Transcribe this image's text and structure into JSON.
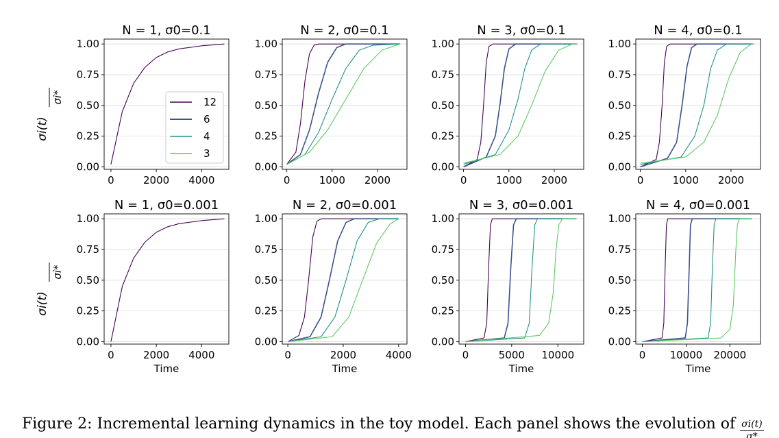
{
  "figure": {
    "caption_text": "Figure 2: Incremental learning dynamics in the toy model. Each panel shows the evolution of",
    "caption_frac_num": "σi(t)",
    "caption_frac_den": "σ*",
    "colors": {
      "12": "#440154",
      "6": "#3b528b",
      "4": "#21918c",
      "3": "#5ec962"
    }
  },
  "chart_data": [
    {
      "type": "line",
      "title": "N = 1, σ0=0.1",
      "ylabel": "σi(t) / σi*",
      "xlabel": "",
      "xlim": [
        -300,
        5200
      ],
      "ylim": [
        -0.02,
        1.04
      ],
      "xticks": [
        0,
        2000,
        4000
      ],
      "yticks": [
        0.0,
        0.25,
        0.5,
        0.75,
        1.0
      ],
      "legend": {
        "position": "lower-right",
        "entries": [
          "12",
          "6",
          "4",
          "3"
        ]
      },
      "series": [
        {
          "name": "12",
          "x": [
            0,
            500,
            1000,
            1500,
            2000,
            2500,
            3000,
            4000,
            5000
          ],
          "y": [
            0.02,
            0.45,
            0.68,
            0.81,
            0.89,
            0.935,
            0.96,
            0.985,
            1.0
          ]
        }
      ]
    },
    {
      "type": "line",
      "title": "N = 2, σ0=0.1",
      "xlabel": "",
      "xlim": [
        -100,
        2650
      ],
      "ylim": [
        -0.02,
        1.04
      ],
      "xticks": [
        0,
        1000,
        2000
      ],
      "yticks": [
        0.0,
        0.25,
        0.5,
        0.75,
        1.0
      ],
      "series": [
        {
          "name": "12",
          "x": [
            0,
            200,
            300,
            400,
            500,
            600,
            700,
            2500
          ],
          "y": [
            0.02,
            0.12,
            0.35,
            0.7,
            0.92,
            0.99,
            1.0,
            1.0
          ]
        },
        {
          "name": "6",
          "x": [
            0,
            300,
            500,
            700,
            900,
            1100,
            1300,
            2500
          ],
          "y": [
            0.02,
            0.1,
            0.3,
            0.6,
            0.85,
            0.97,
            1.0,
            1.0
          ]
        },
        {
          "name": "4",
          "x": [
            0,
            400,
            700,
            1000,
            1300,
            1600,
            1900,
            2500
          ],
          "y": [
            0.02,
            0.1,
            0.28,
            0.55,
            0.8,
            0.95,
            0.99,
            1.0
          ]
        },
        {
          "name": "3",
          "x": [
            0,
            500,
            900,
            1300,
            1700,
            2100,
            2500
          ],
          "y": [
            0.02,
            0.12,
            0.3,
            0.55,
            0.8,
            0.95,
            1.0
          ]
        }
      ]
    },
    {
      "type": "line",
      "title": "N = 3, σ0=0.1",
      "xlabel": "",
      "xlim": [
        -100,
        2650
      ],
      "ylim": [
        -0.02,
        1.04
      ],
      "xticks": [
        0,
        1000,
        2000
      ],
      "yticks": [
        0.0,
        0.25,
        0.5,
        0.75,
        1.0
      ],
      "series": [
        {
          "name": "12",
          "x": [
            0,
            300,
            380,
            440,
            500,
            560,
            650,
            2500
          ],
          "y": [
            0.0,
            0.06,
            0.2,
            0.5,
            0.85,
            0.98,
            1.0,
            1.0
          ]
        },
        {
          "name": "6",
          "x": [
            0,
            500,
            700,
            800,
            900,
            1000,
            1150,
            2500
          ],
          "y": [
            0.0,
            0.08,
            0.25,
            0.5,
            0.8,
            0.96,
            1.0,
            1.0
          ]
        },
        {
          "name": "4",
          "x": [
            0,
            700,
            1000,
            1200,
            1350,
            1500,
            1700,
            2500
          ],
          "y": [
            0.02,
            0.1,
            0.3,
            0.55,
            0.8,
            0.95,
            1.0,
            1.0
          ]
        },
        {
          "name": "3",
          "x": [
            0,
            800,
            1200,
            1500,
            1800,
            2100,
            2400,
            2500
          ],
          "y": [
            0.03,
            0.1,
            0.25,
            0.5,
            0.78,
            0.95,
            1.0,
            1.0
          ]
        }
      ]
    },
    {
      "type": "line",
      "title": "N = 4, σ0=0.1",
      "xlabel": "",
      "xlim": [
        -100,
        2650
      ],
      "ylim": [
        -0.02,
        1.04
      ],
      "xticks": [
        0,
        1000,
        2000
      ],
      "yticks": [
        0.0,
        0.25,
        0.5,
        0.75,
        1.0
      ],
      "series": [
        {
          "name": "12",
          "x": [
            0,
            350,
            420,
            480,
            530,
            580,
            650,
            2500
          ],
          "y": [
            0.0,
            0.06,
            0.2,
            0.5,
            0.85,
            0.98,
            1.0,
            1.0
          ]
        },
        {
          "name": "6",
          "x": [
            0,
            600,
            800,
            920,
            1030,
            1130,
            1250,
            2500
          ],
          "y": [
            0.0,
            0.07,
            0.2,
            0.5,
            0.82,
            0.97,
            1.0,
            1.0
          ]
        },
        {
          "name": "4",
          "x": [
            0,
            900,
            1200,
            1400,
            1550,
            1700,
            1900,
            2500
          ],
          "y": [
            0.02,
            0.08,
            0.25,
            0.5,
            0.8,
            0.95,
            1.0,
            1.0
          ]
        },
        {
          "name": "3",
          "x": [
            0,
            1000,
            1400,
            1700,
            1950,
            2200,
            2450,
            2500
          ],
          "y": [
            0.03,
            0.08,
            0.2,
            0.42,
            0.72,
            0.93,
            1.0,
            1.0
          ]
        }
      ]
    },
    {
      "type": "line",
      "title": "N = 1, σ0=0.001",
      "ylabel": "σi(t) / σi*",
      "xlabel": "Time",
      "xlim": [
        -300,
        5200
      ],
      "ylim": [
        -0.02,
        1.04
      ],
      "xticks": [
        0,
        2000,
        4000
      ],
      "yticks": [
        0.0,
        0.25,
        0.5,
        0.75,
        1.0
      ],
      "series": [
        {
          "name": "12",
          "x": [
            0,
            500,
            1000,
            1500,
            2000,
            2500,
            3000,
            4000,
            5000
          ],
          "y": [
            0.0,
            0.45,
            0.68,
            0.81,
            0.89,
            0.935,
            0.96,
            0.985,
            1.0
          ]
        }
      ]
    },
    {
      "type": "line",
      "title": "N = 2, σ0=0.001",
      "xlabel": "Time",
      "xlim": [
        -200,
        4300
      ],
      "ylim": [
        -0.02,
        1.04
      ],
      "xticks": [
        0,
        2000,
        4000
      ],
      "yticks": [
        0.0,
        0.25,
        0.5,
        0.75,
        1.0
      ],
      "series": [
        {
          "name": "12",
          "x": [
            0,
            400,
            600,
            750,
            900,
            1050,
            1200,
            4000
          ],
          "y": [
            0.0,
            0.05,
            0.2,
            0.5,
            0.85,
            0.98,
            1.0,
            1.0
          ]
        },
        {
          "name": "6",
          "x": [
            0,
            800,
            1200,
            1500,
            1800,
            2100,
            2400,
            4000
          ],
          "y": [
            0.0,
            0.04,
            0.2,
            0.5,
            0.82,
            0.97,
            1.0,
            1.0
          ]
        },
        {
          "name": "4",
          "x": [
            0,
            1200,
            1700,
            2100,
            2500,
            2900,
            3300,
            4000
          ],
          "y": [
            0.0,
            0.04,
            0.2,
            0.5,
            0.82,
            0.97,
            1.0,
            1.0
          ]
        },
        {
          "name": "3",
          "x": [
            0,
            1600,
            2200,
            2700,
            3200,
            3700,
            4000
          ],
          "y": [
            0.0,
            0.04,
            0.2,
            0.5,
            0.8,
            0.96,
            1.0
          ]
        }
      ]
    },
    {
      "type": "line",
      "title": "N = 3, σ0=0.001",
      "xlabel": "Time",
      "xlim": [
        -700,
        12800
      ],
      "ylim": [
        -0.02,
        1.04
      ],
      "xticks": [
        0,
        5000,
        10000
      ],
      "yticks": [
        0.0,
        0.25,
        0.5,
        0.75,
        1.0
      ],
      "series": [
        {
          "name": "12",
          "x": [
            0,
            2000,
            2300,
            2500,
            2700,
            2900,
            12000
          ],
          "y": [
            0.0,
            0.03,
            0.15,
            0.6,
            0.95,
            1.0,
            1.0
          ]
        },
        {
          "name": "6",
          "x": [
            0,
            4200,
            4600,
            4900,
            5200,
            5500,
            12000
          ],
          "y": [
            0.0,
            0.03,
            0.15,
            0.6,
            0.95,
            1.0,
            1.0
          ]
        },
        {
          "name": "4",
          "x": [
            0,
            6400,
            6900,
            7200,
            7500,
            7800,
            12000
          ],
          "y": [
            0.0,
            0.03,
            0.15,
            0.6,
            0.95,
            1.0,
            1.0
          ]
        },
        {
          "name": "3",
          "x": [
            0,
            8000,
            9000,
            9500,
            9800,
            10100,
            10500,
            12000
          ],
          "y": [
            0.0,
            0.05,
            0.15,
            0.4,
            0.75,
            0.95,
            1.0,
            1.0
          ]
        }
      ]
    },
    {
      "type": "line",
      "title": "N = 4, σ0=0.001",
      "xlabel": "Time",
      "xlim": [
        -1500,
        27000
      ],
      "ylim": [
        -0.02,
        1.04
      ],
      "xticks": [
        0,
        10000,
        20000
      ],
      "yticks": [
        0.0,
        0.25,
        0.5,
        0.75,
        1.0
      ],
      "series": [
        {
          "name": "12",
          "x": [
            0,
            4500,
            4900,
            5200,
            5500,
            5800,
            25000
          ],
          "y": [
            0.0,
            0.03,
            0.15,
            0.6,
            0.95,
            1.0,
            1.0
          ]
        },
        {
          "name": "6",
          "x": [
            0,
            9800,
            10300,
            10700,
            11000,
            11400,
            25000
          ],
          "y": [
            0.0,
            0.03,
            0.15,
            0.6,
            0.95,
            1.0,
            1.0
          ]
        },
        {
          "name": "4",
          "x": [
            0,
            15000,
            15600,
            16000,
            16400,
            16800,
            25000
          ],
          "y": [
            0.0,
            0.03,
            0.15,
            0.6,
            0.95,
            1.0,
            1.0
          ]
        },
        {
          "name": "3",
          "x": [
            0,
            18000,
            20000,
            20800,
            21300,
            21700,
            22200,
            25000
          ],
          "y": [
            0.0,
            0.03,
            0.1,
            0.3,
            0.7,
            0.95,
            1.0,
            1.0
          ]
        }
      ]
    }
  ]
}
